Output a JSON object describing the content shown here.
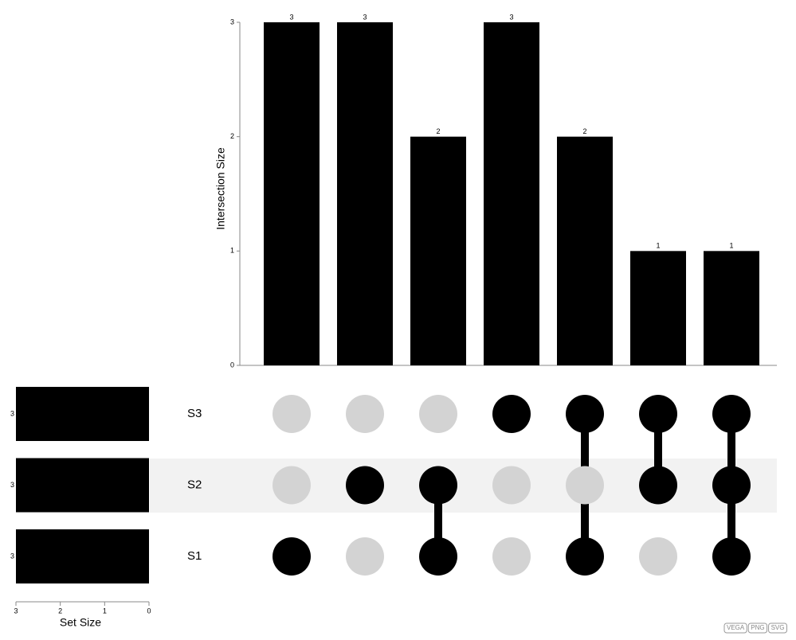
{
  "chart_data": {
    "type": "upset",
    "y_label": "Intersection Size",
    "values": [
      3,
      3,
      2,
      3,
      2,
      1,
      1
    ],
    "ylim": [
      0,
      3
    ],
    "yticks": [
      0,
      1,
      2,
      3
    ],
    "bar_color": "#000000",
    "sets": [
      "S3",
      "S2",
      "S1"
    ],
    "set_sizes": [
      3,
      3,
      3
    ],
    "set_size_label": "Set Size",
    "xlim": [
      3,
      0
    ],
    "xticks": [
      3,
      2,
      1,
      0
    ],
    "membership": [
      [
        0,
        0,
        0,
        1,
        1,
        1,
        1
      ],
      [
        0,
        1,
        1,
        0,
        0,
        1,
        1
      ],
      [
        1,
        0,
        1,
        0,
        1,
        0,
        1
      ]
    ],
    "dot_color": "#000000",
    "empty_dot_color": "#d3d3d3"
  },
  "export_links": [
    "VEGA",
    "PNG",
    "SVG"
  ]
}
